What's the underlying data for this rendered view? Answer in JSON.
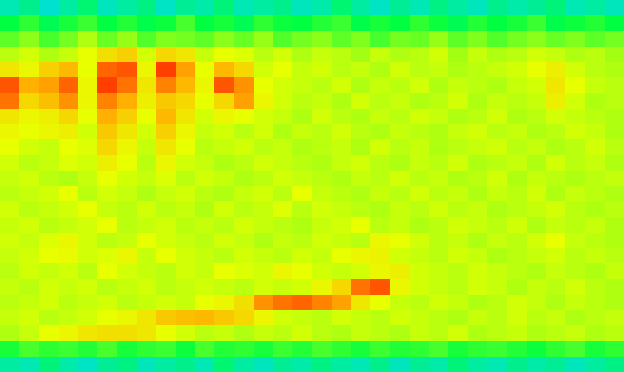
{
  "chart_data": {
    "type": "heatmap",
    "tick_labels": false,
    "zlim": [
      0,
      100
    ],
    "colors": [
      "#1e3cff",
      "#00d8ff",
      "#00ff40",
      "#e8ff00",
      "#ffb000",
      "#ff1800"
    ],
    "z": [
      [
        28,
        32,
        25,
        30,
        35,
        27,
        30,
        33,
        26,
        31,
        29,
        34,
        28,
        30,
        32,
        27,
        29,
        35,
        30,
        26,
        31,
        28,
        33,
        30,
        27,
        32,
        29,
        31,
        34,
        28,
        30,
        27
      ],
      [
        40,
        44,
        38,
        42,
        45,
        40,
        43,
        39,
        41,
        46,
        40,
        42,
        38,
        44,
        41,
        40,
        43,
        45,
        39,
        42,
        40,
        44,
        41,
        38,
        43,
        40,
        42,
        45,
        39,
        41,
        43,
        40
      ],
      [
        48,
        52,
        46,
        50,
        55,
        49,
        53,
        47,
        51,
        50,
        48,
        52,
        49,
        53,
        47,
        50,
        52,
        48,
        51,
        46,
        50,
        49,
        53,
        48,
        51,
        47,
        50,
        52,
        49,
        51,
        48,
        50
      ],
      [
        56,
        58,
        55,
        57,
        60,
        68,
        72,
        58,
        70,
        66,
        57,
        60,
        59,
        56,
        58,
        55,
        57,
        56,
        54,
        57,
        55,
        56,
        58,
        54,
        57,
        55,
        56,
        58,
        57,
        55,
        56,
        54
      ],
      [
        66,
        62,
        72,
        78,
        60,
        90,
        92,
        62,
        95,
        82,
        60,
        78,
        70,
        58,
        60,
        57,
        58,
        56,
        57,
        55,
        58,
        56,
        57,
        55,
        56,
        57,
        58,
        60,
        64,
        58,
        56,
        55
      ],
      [
        92,
        80,
        82,
        90,
        62,
        95,
        88,
        66,
        86,
        78,
        62,
        92,
        84,
        60,
        58,
        57,
        56,
        58,
        55,
        57,
        56,
        58,
        55,
        57,
        56,
        55,
        57,
        58,
        66,
        60,
        57,
        56
      ],
      [
        88,
        70,
        76,
        84,
        62,
        86,
        80,
        64,
        74,
        70,
        60,
        70,
        82,
        62,
        58,
        56,
        57,
        55,
        58,
        56,
        57,
        55,
        56,
        58,
        55,
        57,
        56,
        57,
        64,
        58,
        55,
        56
      ],
      [
        66,
        62,
        64,
        70,
        60,
        80,
        72,
        60,
        78,
        66,
        58,
        62,
        60,
        58,
        57,
        55,
        58,
        56,
        55,
        57,
        56,
        58,
        57,
        55,
        56,
        58,
        55,
        56,
        58,
        57,
        56,
        55
      ],
      [
        62,
        60,
        62,
        64,
        58,
        74,
        66,
        58,
        72,
        62,
        57,
        58,
        56,
        58,
        55,
        57,
        56,
        58,
        56,
        55,
        57,
        56,
        55,
        57,
        58,
        56,
        57,
        55,
        56,
        58,
        57,
        55
      ],
      [
        60,
        58,
        57,
        60,
        59,
        70,
        62,
        57,
        66,
        60,
        56,
        57,
        58,
        56,
        57,
        55,
        56,
        57,
        55,
        58,
        56,
        57,
        55,
        56,
        57,
        58,
        56,
        57,
        55,
        56,
        58,
        56
      ],
      [
        58,
        56,
        57,
        59,
        58,
        64,
        60,
        56,
        62,
        58,
        57,
        55,
        56,
        58,
        57,
        56,
        55,
        57,
        58,
        56,
        55,
        57,
        56,
        58,
        55,
        56,
        57,
        55,
        58,
        56,
        57,
        55
      ],
      [
        57,
        58,
        56,
        55,
        57,
        60,
        58,
        57,
        59,
        56,
        58,
        57,
        55,
        56,
        58,
        57,
        56,
        55,
        57,
        56,
        58,
        56,
        57,
        55,
        56,
        58,
        55,
        57,
        56,
        55,
        56,
        57
      ],
      [
        56,
        57,
        58,
        60,
        56,
        58,
        57,
        55,
        57,
        58,
        56,
        55,
        57,
        58,
        56,
        60,
        57,
        56,
        55,
        57,
        56,
        58,
        56,
        57,
        55,
        57,
        56,
        58,
        55,
        57,
        56,
        55
      ],
      [
        58,
        56,
        57,
        58,
        60,
        57,
        56,
        58,
        56,
        57,
        55,
        58,
        56,
        57,
        59,
        56,
        58,
        57,
        56,
        55,
        57,
        56,
        58,
        56,
        57,
        55,
        56,
        57,
        58,
        56,
        55,
        56
      ],
      [
        57,
        58,
        56,
        57,
        58,
        60,
        56,
        57,
        58,
        56,
        57,
        56,
        58,
        57,
        56,
        55,
        57,
        58,
        60,
        56,
        57,
        55,
        56,
        58,
        57,
        56,
        58,
        55,
        57,
        56,
        57,
        55
      ],
      [
        58,
        57,
        59,
        62,
        58,
        56,
        57,
        60,
        58,
        57,
        56,
        58,
        57,
        55,
        57,
        56,
        58,
        57,
        56,
        62,
        60,
        58,
        56,
        57,
        55,
        57,
        56,
        58,
        60,
        57,
        56,
        55
      ],
      [
        57,
        58,
        60,
        61,
        58,
        59,
        62,
        57,
        60,
        58,
        57,
        56,
        58,
        57,
        56,
        58,
        57,
        60,
        62,
        63,
        58,
        57,
        56,
        58,
        57,
        55,
        56,
        57,
        58,
        56,
        57,
        56
      ],
      [
        56,
        58,
        57,
        58,
        56,
        60,
        58,
        57,
        56,
        58,
        57,
        60,
        59,
        58,
        62,
        60,
        58,
        57,
        58,
        62,
        64,
        58,
        57,
        56,
        58,
        57,
        56,
        55,
        57,
        56,
        55,
        57
      ],
      [
        57,
        56,
        58,
        57,
        58,
        56,
        57,
        58,
        56,
        57,
        58,
        57,
        56,
        58,
        57,
        58,
        62,
        70,
        88,
        92,
        62,
        58,
        57,
        56,
        58,
        57,
        55,
        57,
        56,
        58,
        56,
        55
      ],
      [
        56,
        57,
        58,
        56,
        57,
        58,
        56,
        57,
        58,
        57,
        60,
        62,
        68,
        84,
        88,
        90,
        86,
        82,
        66,
        60,
        57,
        56,
        58,
        57,
        55,
        56,
        58,
        57,
        55,
        57,
        56,
        55
      ],
      [
        57,
        58,
        56,
        57,
        58,
        60,
        62,
        66,
        74,
        76,
        78,
        74,
        70,
        62,
        58,
        57,
        56,
        58,
        57,
        56,
        58,
        57,
        56,
        55,
        57,
        56,
        58,
        56,
        57,
        55,
        56,
        57
      ],
      [
        55,
        57,
        60,
        62,
        66,
        68,
        68,
        66,
        60,
        58,
        56,
        57,
        55,
        57,
        56,
        58,
        56,
        55,
        57,
        56,
        55,
        57,
        56,
        58,
        55,
        56,
        57,
        55,
        56,
        57,
        55,
        56
      ],
      [
        42,
        46,
        44,
        45,
        43,
        46,
        42,
        44,
        45,
        41,
        46,
        43,
        44,
        42,
        45,
        43,
        46,
        44,
        42,
        45,
        43,
        44,
        46,
        42,
        44,
        45,
        43,
        41,
        44,
        46,
        42,
        44
      ],
      [
        30,
        28,
        34,
        29,
        26,
        31,
        33,
        27,
        30,
        32,
        28,
        35,
        30,
        27,
        31,
        29,
        33,
        30,
        28,
        32,
        27,
        31,
        29,
        34,
        30,
        28,
        32,
        29,
        31,
        27,
        30,
        33
      ]
    ]
  }
}
